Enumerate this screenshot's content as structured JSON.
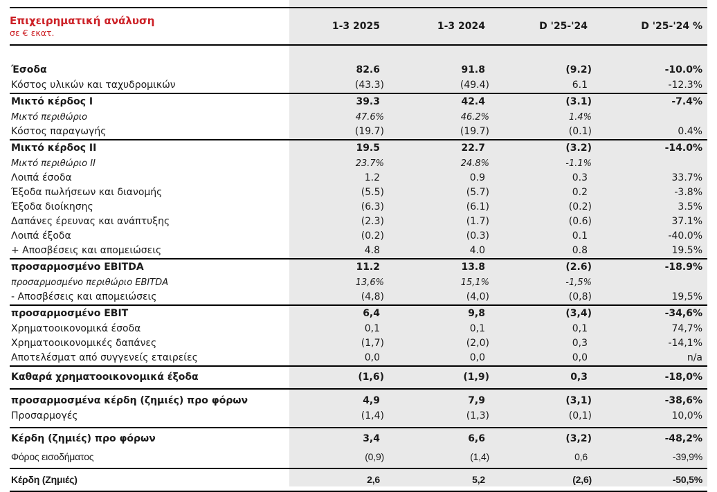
{
  "colors": {
    "accent_red": "#cc2026",
    "band_gray": "#e9e9e9",
    "rule_black": "#000000"
  },
  "table": {
    "title": "Επιχειρηματική ανάλυση",
    "subtitle": "σε € εκατ.",
    "columns": [
      "1-3 2025",
      "1-3 2024",
      "D '25-'24",
      "D '25-'24 %"
    ],
    "sections": [
      {
        "rows": [
          {
            "label": "Έσοδα",
            "style": "bold",
            "values": [
              "82.6",
              "91.8",
              "(9.2)",
              "-10.0%"
            ]
          },
          {
            "label": "Κόστος υλικών και ταχυδρομικών",
            "style": "plain",
            "values": [
              "(43.3)",
              "(49.4)",
              "6.1",
              "-12.3%"
            ]
          }
        ]
      },
      {
        "rows": [
          {
            "label": "Μικτό κέρδος Ι",
            "style": "bold",
            "values": [
              "39.3",
              "42.4",
              "(3.1)",
              "-7.4%"
            ]
          },
          {
            "label": "Μικτό περιθώριο",
            "style": "italic",
            "values": [
              "47.6%",
              "46.2%",
              "1.4%",
              ""
            ]
          },
          {
            "label": "Κόστος παραγωγής",
            "style": "plain",
            "values": [
              "(19.7)",
              "(19.7)",
              "(0.1)",
              "0.4%"
            ]
          }
        ]
      },
      {
        "rows": [
          {
            "label": "Μικτό κέρδος ΙΙ",
            "style": "bold",
            "values": [
              "19.5",
              "22.7",
              "(3.2)",
              "-14.0%"
            ]
          },
          {
            "label": "Μικτό περιθώριο ΙΙ",
            "style": "italic",
            "values": [
              "23.7%",
              "24.8%",
              "-1.1%",
              ""
            ]
          },
          {
            "label": "Λοιπά έσοδα",
            "style": "plain",
            "values": [
              "1.2",
              "0.9",
              "0.3",
              "33.7%"
            ]
          },
          {
            "label": "Έξοδα πωλήσεων και διανομής",
            "style": "plain",
            "values": [
              "(5.5)",
              "(5.7)",
              "0.2",
              "-3.8%"
            ]
          },
          {
            "label": "Έξοδα διοίκησης",
            "style": "plain",
            "values": [
              "(6.3)",
              "(6.1)",
              "(0.2)",
              "3.5%"
            ]
          },
          {
            "label": "Δαπάνες έρευνας και ανάπτυξης",
            "style": "plain",
            "values": [
              "(2.3)",
              "(1.7)",
              "(0.6)",
              "37.1%"
            ]
          },
          {
            "label": "Λοιπά έξοδα",
            "style": "plain",
            "values": [
              "(0.2)",
              "(0.3)",
              "0.1",
              "-40.0%"
            ]
          },
          {
            "label": "+ Αποσβέσεις και απομειώσεις",
            "style": "plain",
            "values": [
              "4.8",
              "4.0",
              "0.8",
              "19.5%"
            ]
          }
        ]
      },
      {
        "rows": [
          {
            "label": "προσαρμοσμένο EBITDA",
            "style": "bold",
            "values": [
              "11.2",
              "13.8",
              "(2.6)",
              "-18.9%"
            ]
          },
          {
            "label": "προσαρμοσμένο περιθώριο EBITDA",
            "style": "italic",
            "values": [
              "13,6%",
              "15,1%",
              "-1,5%",
              ""
            ]
          },
          {
            "label": "- Αποσβέσεις και απομειώσεις",
            "style": "plain",
            "values": [
              "(4,8)",
              "(4,0)",
              "(0,8)",
              "19,5%"
            ]
          }
        ]
      },
      {
        "rows": [
          {
            "label": "προσαρμοσμένο EBIT",
            "style": "bold",
            "values": [
              "6,4",
              "9,8",
              "(3,4)",
              "-34,6%"
            ]
          },
          {
            "label": "Χρηματοοικονομικά έσοδα",
            "style": "plain",
            "values": [
              "0,1",
              "0,1",
              "0,1",
              "74,7%"
            ]
          },
          {
            "label": "Χρηματοοικονομικές δαπάνες",
            "style": "plain",
            "values": [
              "(1,7)",
              "(2,0)",
              "0,3",
              "-14,1%"
            ]
          },
          {
            "label": "Αποτελέσματ από συγγενείς εταιρείες",
            "style": "plain",
            "values": [
              "0,0",
              "0,0",
              "0,0",
              "n/a"
            ]
          }
        ]
      },
      {
        "rows": [
          {
            "label": "Καθαρά χρηματοοικονομικά έξοδα",
            "style": "bold",
            "spacing": "loose",
            "values": [
              "(1,6)",
              "(1,9)",
              "0,3",
              "-18,0%"
            ]
          }
        ]
      },
      {
        "rows": [
          {
            "label": "προσαρμοσμένα κέρδη (ζημιές) προ φόρων",
            "style": "bold",
            "spacing": "top",
            "values": [
              "4,9",
              "7,9",
              "(3,1)",
              "-38,6%"
            ]
          },
          {
            "label": "Προσαρμογές",
            "style": "plain",
            "spacing": "bottom",
            "values": [
              "(1,4)",
              "(1,3)",
              "(0,1)",
              "10,0%"
            ]
          }
        ]
      },
      {
        "rows": [
          {
            "label": "Κέρδη (ζημιές) προ φόρων",
            "style": "bold",
            "spacing": "loose",
            "values": [
              "3,4",
              "6,6",
              "(3,2)",
              "-48,2%"
            ]
          },
          {
            "label": "Φόρος εισοδήματος",
            "style": "plain",
            "alt_font": true,
            "spacing": "bottom",
            "values": [
              "(0,9)",
              "(1,4)",
              "0,6",
              "-39,9%"
            ]
          }
        ]
      },
      {
        "rows": [
          {
            "label": "Κέρδη (Ζημιές)",
            "style": "bold",
            "alt_font": true,
            "spacing": "loose",
            "values": [
              "2,6",
              "5,2",
              "(2,6)",
              "-50,5%"
            ]
          }
        ]
      }
    ]
  }
}
